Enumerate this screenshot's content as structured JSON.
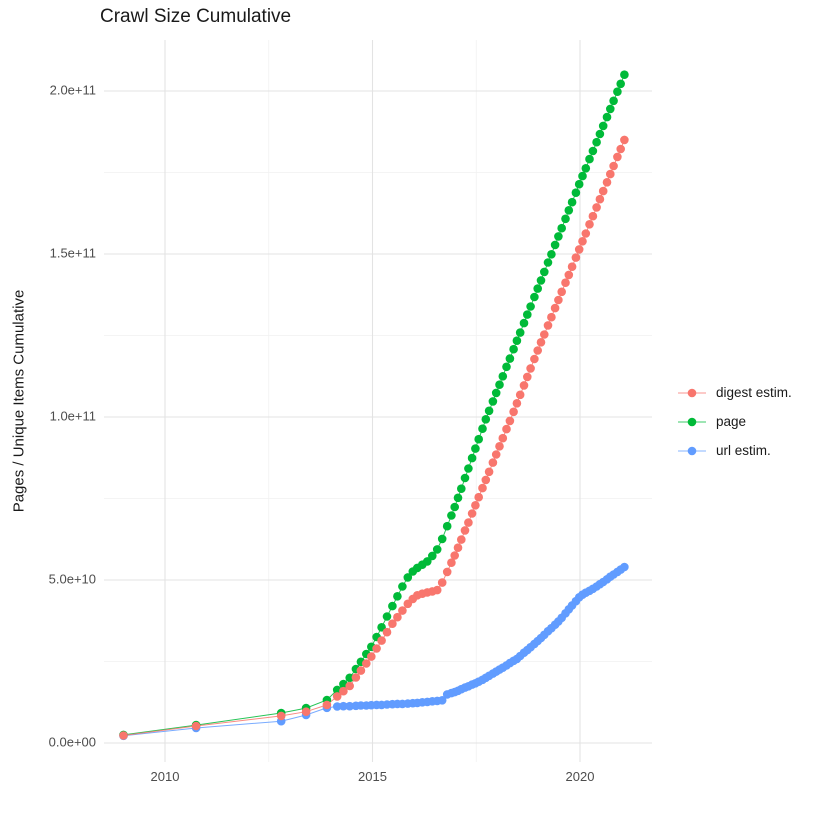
{
  "title": "Crawl Size Cumulative",
  "y_axis_title": "Pages / Unique Items Cumulative",
  "legend": {
    "position": "right",
    "items": [
      {
        "label": "digest estim.",
        "color": "#F8766D"
      },
      {
        "label": "page",
        "color": "#00BA38"
      },
      {
        "label": "url estim.",
        "color": "#619CFF"
      }
    ]
  },
  "chart_data": {
    "type": "scatter",
    "title": "Crawl Size Cumulative",
    "xlabel": "",
    "ylabel": "Pages / Unique Items Cumulative",
    "x_unit": "year (decimal)",
    "value_unit": "items, stored in billions (1e9)",
    "xlim": [
      2008.5,
      2021.75
    ],
    "ylim_billion": [
      -4.6,
      215
    ],
    "grid": "major+minor",
    "legend_position": "right",
    "x_ticks": {
      "major": [
        2010,
        2015,
        2020
      ],
      "labels": [
        "2010",
        "2015",
        "2020"
      ],
      "minor": [
        2012.5,
        2017.5
      ]
    },
    "y_ticks": {
      "major_billion": [
        0,
        50,
        100,
        150,
        200
      ],
      "labels": [
        "0.0e+00",
        "5.0e+10",
        "1.0e+11",
        "1.5e+11",
        "2.0e+11"
      ],
      "minor_billion": [
        25,
        75,
        125,
        175
      ]
    },
    "years": [
      2009.0,
      2010.75,
      2012.8,
      2013.4,
      2013.9,
      2014.15,
      2014.3,
      2014.45,
      2014.6,
      2014.72,
      2014.85,
      2014.97,
      2015.1,
      2015.22,
      2015.35,
      2015.48,
      2015.6,
      2015.72,
      2015.85,
      2015.97,
      2016.08,
      2016.2,
      2016.32,
      2016.44,
      2016.56,
      2016.68,
      2016.8,
      2016.9,
      2016.98,
      2017.06,
      2017.14,
      2017.23,
      2017.31,
      2017.4,
      2017.48,
      2017.56,
      2017.65,
      2017.73,
      2017.81,
      2017.9,
      2017.98,
      2018.06,
      2018.14,
      2018.23,
      2018.31,
      2018.4,
      2018.48,
      2018.56,
      2018.65,
      2018.73,
      2018.81,
      2018.9,
      2018.98,
      2019.06,
      2019.14,
      2019.23,
      2019.31,
      2019.4,
      2019.48,
      2019.56,
      2019.65,
      2019.73,
      2019.81,
      2019.9,
      2019.98,
      2020.06,
      2020.14,
      2020.23,
      2020.31,
      2020.4,
      2020.48,
      2020.56,
      2020.65,
      2020.73,
      2020.81,
      2020.9,
      2020.98,
      2021.07
    ],
    "series": [
      {
        "name": "page",
        "color": "#00BA38",
        "values_billion": [
          2.5,
          5.5,
          9.2,
          10.7,
          13.2,
          16.3,
          18.1,
          20,
          22.7,
          24.9,
          27.3,
          29.5,
          32.5,
          35.5,
          38.8,
          42,
          45,
          48,
          50.8,
          52.6,
          53.7,
          54.7,
          55.7,
          57.4,
          59.4,
          62.6,
          66.5,
          69.8,
          72.4,
          75.2,
          78,
          81.3,
          84.2,
          87.4,
          90.3,
          93.2,
          96.4,
          99.3,
          101.9,
          104.8,
          107.4,
          109.9,
          112.5,
          115.4,
          117.9,
          120.8,
          123.4,
          125.9,
          128.8,
          131.4,
          133.9,
          136.8,
          139.4,
          141.9,
          144.5,
          147.4,
          149.9,
          152.8,
          155.4,
          157.9,
          160.8,
          163.4,
          165.9,
          168.8,
          171.4,
          173.9,
          176.3,
          179.1,
          181.6,
          184.3,
          186.8,
          189.3,
          192,
          194.5,
          197,
          199.8,
          202.2,
          205
        ]
      },
      {
        "name": "url estim.",
        "color": "#619CFF",
        "values_billion": [
          2.2,
          4.6,
          6.7,
          8.6,
          10.8,
          11.2,
          11.3,
          11.3,
          11.4,
          11.5,
          11.5,
          11.6,
          11.7,
          11.7,
          11.8,
          11.9,
          12,
          12,
          12.1,
          12.2,
          12.3,
          12.5,
          12.6,
          12.8,
          12.9,
          13.1,
          14.9,
          15.3,
          15.6,
          16,
          16.5,
          17,
          17.4,
          17.9,
          18.3,
          18.8,
          19.4,
          20,
          20.6,
          21.3,
          21.9,
          22.5,
          23.1,
          23.8,
          24.5,
          25.2,
          25.8,
          26.7,
          27.7,
          28.5,
          29.4,
          30.4,
          31.3,
          32.2,
          33.2,
          34.3,
          35.2,
          36.3,
          37.3,
          38.4,
          39.8,
          41,
          42.2,
          43.5,
          44.7,
          45.5,
          46.1,
          46.7,
          47.3,
          48,
          48.7,
          49.4,
          50.2,
          51,
          51.7,
          52.5,
          53.2,
          54
        ]
      },
      {
        "name": "digest estim.",
        "color": "#F8766D",
        "values_billion": [
          2.3,
          5.2,
          8.3,
          9.6,
          11.7,
          14.3,
          15.9,
          17.5,
          20.1,
          22.2,
          24.4,
          26.5,
          29,
          31.4,
          34,
          36.6,
          38.6,
          40.6,
          42.7,
          44.2,
          45.3,
          45.8,
          46.2,
          46.5,
          46.9,
          49.2,
          52.5,
          55.3,
          57.5,
          59.9,
          62.4,
          65.2,
          67.6,
          70.4,
          72.9,
          75.4,
          78.2,
          80.7,
          83.2,
          86,
          88.5,
          91,
          93.5,
          96.3,
          98.8,
          101.6,
          104.2,
          106.8,
          109.7,
          112.3,
          114.9,
          117.8,
          120.4,
          122.9,
          125.3,
          128.1,
          130.6,
          133.4,
          135.9,
          138.4,
          141.2,
          143.6,
          146.1,
          148.9,
          151.4,
          153.9,
          156.3,
          159.1,
          161.6,
          164.3,
          166.8,
          169.3,
          172,
          174.5,
          177,
          179.8,
          182.2,
          185
        ]
      }
    ]
  }
}
